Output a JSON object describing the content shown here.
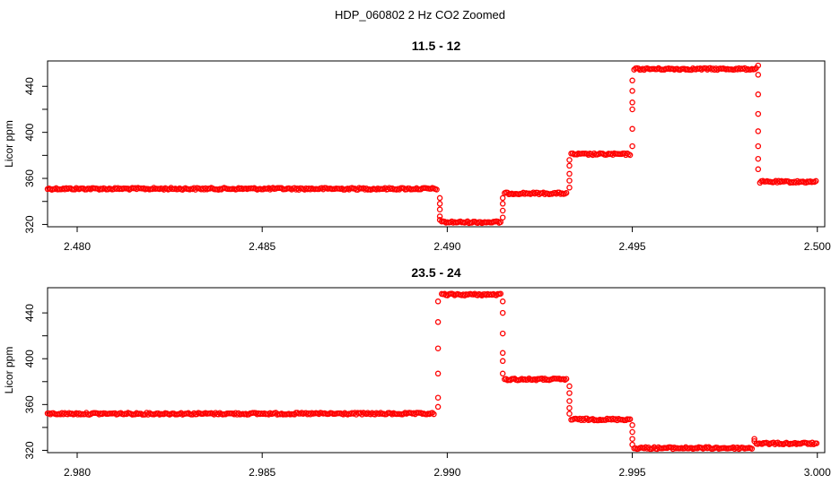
{
  "figure": {
    "title": "HDP_060802  2 Hz CO2 Zoomed"
  },
  "chart_data": [
    {
      "type": "scatter",
      "title": "11.5 - 12",
      "xlabel": "",
      "ylabel": "Licor ppm",
      "xlim": [
        2.4792,
        2.5002
      ],
      "ylim": [
        318,
        462
      ],
      "x_ticks": [
        2.48,
        2.485,
        2.49,
        2.495,
        2.5
      ],
      "x_tick_labels": [
        "2.480",
        "2.485",
        "2.490",
        "2.495",
        "2.500"
      ],
      "y_ticks": [
        320,
        340,
        360,
        380,
        400,
        420,
        440
      ],
      "y_tick_labels": [
        "320",
        "360",
        "400",
        "440"
      ],
      "grid": false,
      "legend": "none",
      "marker": "open-circle",
      "color": "#ff0000",
      "series": [
        {
          "segments": [
            {
              "x_start": 2.4792,
              "x_end": 2.48975,
              "y": 351
            },
            {
              "x_start": 2.48985,
              "x_end": 2.49145,
              "y": 322
            },
            {
              "x_start": 2.49155,
              "x_end": 2.49325,
              "y": 347
            },
            {
              "x_start": 2.49335,
              "x_end": 2.49495,
              "y": 381
            },
            {
              "x_start": 2.49505,
              "x_end": 2.49835,
              "y": 455
            },
            {
              "x_start": 2.49845,
              "x_end": 2.5,
              "y": 357
            }
          ],
          "transitions": [
            {
              "x": 2.4898,
              "y_values": [
                343,
                338,
                333,
                327,
                324
              ]
            },
            {
              "x": 2.4915,
              "y_values": [
                326,
                332,
                338,
                343
              ]
            },
            {
              "x": 2.4933,
              "y_values": [
                352,
                358,
                364,
                371,
                376
              ]
            },
            {
              "x": 2.495,
              "y_values": [
                388,
                403,
                420,
                426,
                436,
                445
              ]
            },
            {
              "x": 2.4984,
              "y_values": [
                458,
                450,
                433,
                416,
                401,
                388,
                377,
                368
              ]
            }
          ]
        }
      ]
    },
    {
      "type": "scatter",
      "title": "23.5 - 24",
      "xlabel": "",
      "ylabel": "Licor ppm",
      "xlim": [
        2.9792,
        3.0002
      ],
      "ylim": [
        318,
        462
      ],
      "x_ticks": [
        2.98,
        2.985,
        2.99,
        2.995,
        3.0
      ],
      "x_tick_labels": [
        "2.980",
        "2.985",
        "2.990",
        "2.995",
        "3.000"
      ],
      "y_ticks": [
        320,
        340,
        360,
        380,
        400,
        420,
        440
      ],
      "y_tick_labels": [
        "320",
        "360",
        "400",
        "440"
      ],
      "grid": false,
      "legend": "none",
      "marker": "open-circle",
      "color": "#ff0000",
      "series": [
        {
          "segments": [
            {
              "x_start": 2.9792,
              "x_end": 2.98965,
              "y": 352
            },
            {
              "x_start": 2.98985,
              "x_end": 2.99145,
              "y": 456
            },
            {
              "x_start": 2.99155,
              "x_end": 2.99325,
              "y": 382
            },
            {
              "x_start": 2.99335,
              "x_end": 2.99495,
              "y": 347
            },
            {
              "x_start": 2.99505,
              "x_end": 2.99825,
              "y": 322
            },
            {
              "x_start": 2.99835,
              "x_end": 3.0,
              "y": 326
            }
          ],
          "transitions": [
            {
              "x": 2.98975,
              "y_values": [
                358,
                366,
                387,
                409,
                432,
                450
              ]
            },
            {
              "x": 2.9915,
              "y_values": [
                450,
                440,
                422,
                405,
                398,
                387
              ]
            },
            {
              "x": 2.9933,
              "y_values": [
                376,
                370,
                363,
                357,
                352
              ]
            },
            {
              "x": 2.995,
              "y_values": [
                342,
                336,
                330,
                325
              ]
            },
            {
              "x": 2.9983,
              "y_values": [
                330,
                328
              ]
            }
          ]
        }
      ]
    }
  ]
}
